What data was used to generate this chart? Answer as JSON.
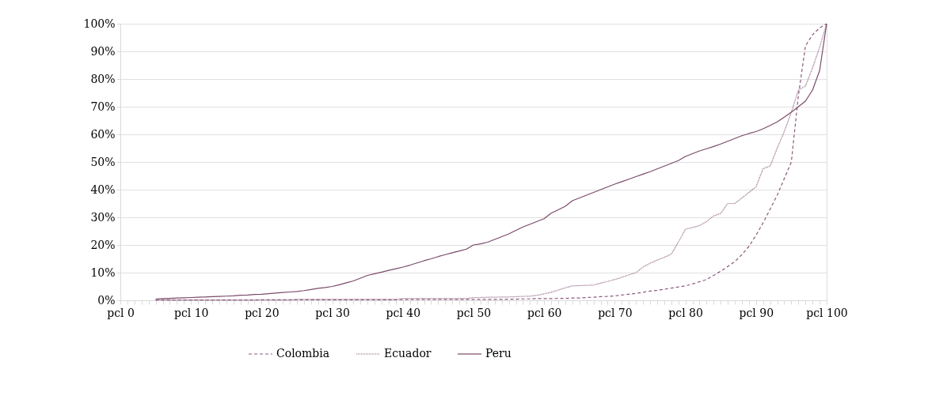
{
  "chart_data": {
    "type": "line",
    "ylim": [
      0,
      100
    ],
    "categories": [
      "pcl 0",
      null,
      null,
      null,
      null,
      null,
      null,
      null,
      null,
      null,
      "pcl 10",
      null,
      null,
      null,
      null,
      null,
      null,
      null,
      null,
      null,
      "pcl 20",
      null,
      null,
      null,
      null,
      null,
      null,
      null,
      null,
      null,
      "pcl 30",
      null,
      null,
      null,
      null,
      null,
      null,
      null,
      null,
      null,
      "pcl 40",
      null,
      null,
      null,
      null,
      null,
      null,
      null,
      null,
      null,
      "pcl 50",
      null,
      null,
      null,
      null,
      null,
      null,
      null,
      null,
      null,
      "pcl 60",
      null,
      null,
      null,
      null,
      null,
      null,
      null,
      null,
      null,
      "pcl 70",
      null,
      null,
      null,
      null,
      null,
      null,
      null,
      null,
      null,
      "pcl 80",
      null,
      null,
      null,
      null,
      null,
      null,
      null,
      null,
      null,
      "pcl 90",
      null,
      null,
      null,
      null,
      null,
      null,
      null,
      null,
      null,
      "pcl 100"
    ],
    "yticks": [
      {
        "value": 0,
        "label": "0%"
      },
      {
        "value": 10,
        "label": "10%"
      },
      {
        "value": 20,
        "label": "20%"
      },
      {
        "value": 30,
        "label": "30%"
      },
      {
        "value": 40,
        "label": "40%"
      },
      {
        "value": 50,
        "label": "50%"
      },
      {
        "value": 60,
        "label": "60%"
      },
      {
        "value": 70,
        "label": "70%"
      },
      {
        "value": 80,
        "label": "80%"
      },
      {
        "value": 90,
        "label": "90%"
      },
      {
        "value": 100,
        "label": "100%"
      }
    ],
    "grid": "y",
    "legend": "bottom",
    "series": [
      {
        "name": "Colombia",
        "color": "#8a5a7c",
        "line_style": "dashed",
        "values": [
          null,
          null,
          null,
          null,
          null,
          0.1,
          0.1,
          0.1,
          0.1,
          0.1,
          0.1,
          0.1,
          0.1,
          0.1,
          0.1,
          0.1,
          0.1,
          0.1,
          0.1,
          0.1,
          0.2,
          0.2,
          0.2,
          0.2,
          0.2,
          0.2,
          0.2,
          0.2,
          0.2,
          0.2,
          0.2,
          0.2,
          0.2,
          0.2,
          0.2,
          0.2,
          0.2,
          0.2,
          0.2,
          0.2,
          0.3,
          0.3,
          0.3,
          0.3,
          0.3,
          0.3,
          0.3,
          0.3,
          0.3,
          0.3,
          0.3,
          0.3,
          0.3,
          0.3,
          0.3,
          0.4,
          0.4,
          0.5,
          0.5,
          0.6,
          0.6,
          0.6,
          0.7,
          0.7,
          0.8,
          0.8,
          1.0,
          1.1,
          1.3,
          1.4,
          1.6,
          1.9,
          2.2,
          2.5,
          2.9,
          3.3,
          3.6,
          4.0,
          4.4,
          4.8,
          5.2,
          5.9,
          6.7,
          7.5,
          9.0,
          10.5,
          12.2,
          14.0,
          16.5,
          19.5,
          23.5,
          28,
          33,
          38,
          44,
          50,
          74,
          92,
          96,
          98.5,
          100
        ]
      },
      {
        "name": "Ecuador",
        "color": "#8a5a7c",
        "line_style": "dotted",
        "values": [
          null,
          null,
          null,
          null,
          null,
          0.1,
          0.1,
          0.1,
          0.1,
          0.1,
          0.1,
          0.1,
          0.1,
          0.1,
          0.1,
          0.1,
          0.1,
          0.1,
          0.1,
          0.1,
          0.1,
          0.1,
          0.1,
          0.1,
          0.1,
          0.3,
          0.3,
          0.3,
          0.3,
          0.3,
          0.3,
          0.3,
          0.3,
          0.3,
          0.3,
          0.3,
          0.3,
          0.3,
          0.3,
          0.3,
          0.6,
          0.6,
          0.6,
          0.6,
          0.6,
          0.6,
          0.6,
          0.6,
          0.6,
          0.6,
          1.0,
          1.0,
          1.1,
          1.1,
          1.2,
          1.2,
          1.3,
          1.4,
          1.5,
          1.8,
          2.3,
          2.9,
          3.7,
          4.5,
          5.2,
          5.3,
          5.4,
          5.5,
          6.2,
          6.8,
          7.5,
          8.3,
          9.2,
          10.0,
          12.0,
          13.4,
          14.5,
          15.5,
          16.7,
          21.0,
          25.7,
          26.3,
          27.0,
          28.5,
          30.5,
          31.4,
          35.0,
          35.0,
          37.0,
          39.0,
          41.0,
          47.6,
          48.5,
          55.0,
          61.0,
          68.0,
          76.0,
          77.5,
          84.0,
          91.4,
          100
        ]
      },
      {
        "name": "Peru",
        "color": "#7a4a6a",
        "line_style": "solid",
        "values": [
          null,
          null,
          null,
          null,
          null,
          0.5,
          0.6,
          0.7,
          0.8,
          0.9,
          1.0,
          1.1,
          1.2,
          1.3,
          1.4,
          1.5,
          1.6,
          1.8,
          1.9,
          2.1,
          2.2,
          2.4,
          2.6,
          2.8,
          3.0,
          3.2,
          3.5,
          3.9,
          4.3,
          4.6,
          5.0,
          5.6,
          6.3,
          7.0,
          8.0,
          9.0,
          9.6,
          10.2,
          10.8,
          11.4,
          12.0,
          12.7,
          13.5,
          14.3,
          15.0,
          15.8,
          16.5,
          17.2,
          17.8,
          18.5,
          20.0,
          20.4,
          21.0,
          22.0,
          23.0,
          24.0,
          25.3,
          26.5,
          27.5,
          28.5,
          29.5,
          31.5,
          32.7,
          34.0,
          36.0,
          37.0,
          38.0,
          39.0,
          40.0,
          41.0,
          42.0,
          42.9,
          43.8,
          44.7,
          45.6,
          46.5,
          47.5,
          48.5,
          49.5,
          50.5,
          52.0,
          53.0,
          54.0,
          54.8,
          55.6,
          56.5,
          57.5,
          58.5,
          59.5,
          60.3,
          61.0,
          62.0,
          63.2,
          64.5,
          66.2,
          68.0,
          70.0,
          72.0,
          76.0,
          83.0,
          100
        ]
      }
    ]
  }
}
